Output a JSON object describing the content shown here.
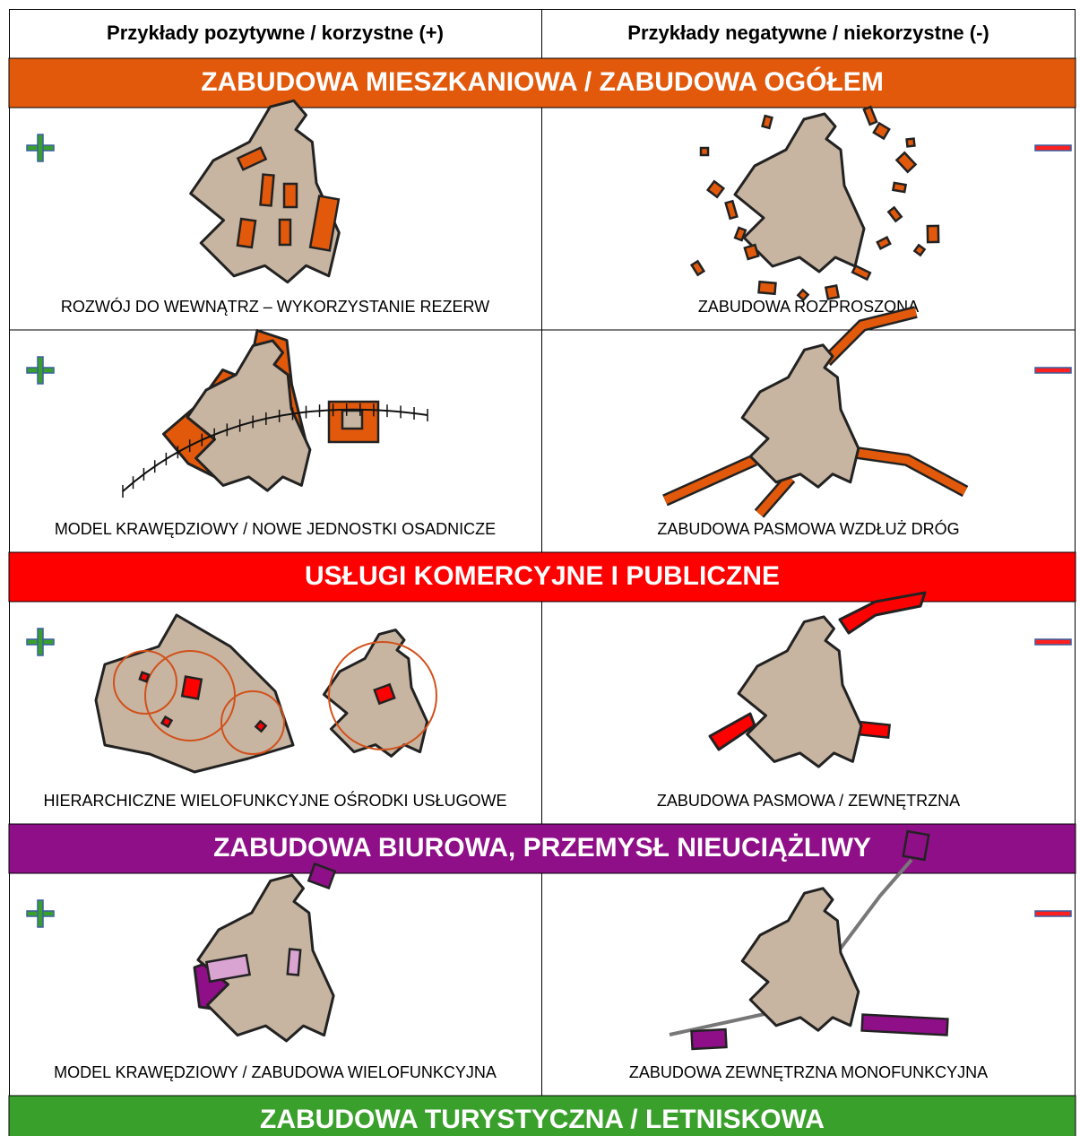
{
  "header": {
    "positive": "Przykłady pozytywne / korzystne (+)",
    "negative": "Przykłady negatywne / niekorzystne (-)"
  },
  "sections": [
    {
      "title": "ZABUDOWA MIESZKANIOWA / ZABUDOWA OGÓŁEM",
      "color": "#e2590b",
      "rows": [
        {
          "positive": "ROZWÓJ DO WEWNĄTRZ – WYKORZYSTANIE REZERW",
          "negative": "ZABUDOWA ROZPROSZONA"
        },
        {
          "positive": "MODEL KRAWĘDZIOWY / NOWE JEDNOSTKI OSADNICZE",
          "negative": "ZABUDOWA PASMOWA WZDŁUŻ DRÓG"
        }
      ]
    },
    {
      "title": "USŁUGI KOMERCYJNE I PUBLICZNE",
      "color": "#ff0000",
      "rows": [
        {
          "positive": "HIERARCHICZNE WIELOFUNKCYJNE OŚRODKI USŁUGOWE",
          "negative": "ZABUDOWA PASMOWA / ZEWNĘTRZNA"
        }
      ]
    },
    {
      "title": "ZABUDOWA BIUROWA, PRZEMYSŁ NIEUCIĄŻLIWY",
      "color": "#8e0f87",
      "rows": [
        {
          "positive": "MODEL KRAWĘDZIOWY / ZABUDOWA WIELOFUNKCYJNA",
          "negative": "ZABUDOWA ZEWNĘTRZNA MONOFUNKCYJNA"
        }
      ]
    },
    {
      "title": "ZABUDOWA TURYSTYCZNA / LETNISKOWA",
      "color": "#3aa02c"
    }
  ]
}
